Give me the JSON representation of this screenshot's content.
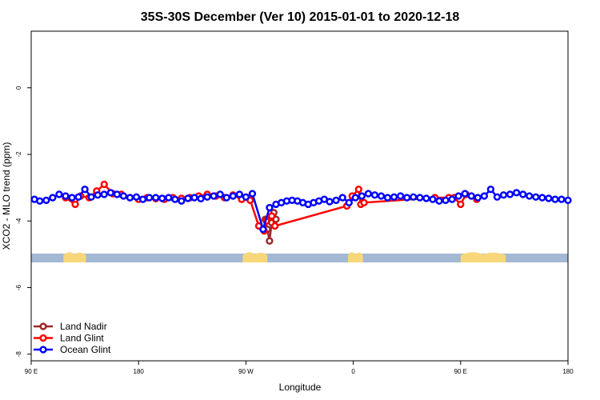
{
  "chart_data": {
    "type": "line",
    "title": "35S-30S December (Ver 10)   2015-01-01 to 2020-12-18",
    "xlabel": "Longitude",
    "ylabel": "XCO2 - MLO trend (ppm)",
    "xlim": [
      90,
      590
    ],
    "ylim": [
      -8.2,
      1.7
    ],
    "x_ticks": [
      {
        "value": 90,
        "label": "90 E"
      },
      {
        "value": 190,
        "label": "180"
      },
      {
        "value": 290,
        "label": "90 W"
      },
      {
        "value": 390,
        "label": "0"
      },
      {
        "value": 490,
        "label": "90 E"
      },
      {
        "value": 590,
        "label": "180"
      }
    ],
    "y_ticks": [
      {
        "value": 0,
        "label": "0"
      },
      {
        "value": -2,
        "label": "-2"
      },
      {
        "value": -4,
        "label": "-4"
      },
      {
        "value": -6,
        "label": "-6"
      },
      {
        "value": -8,
        "label": "-8"
      }
    ],
    "grid": false,
    "legend_position": "bottom-left",
    "land_ocean_band": {
      "y_value": -5.1,
      "ocean_color": "#a3b8d4",
      "land_color": "#f7d77a",
      "land_segments": [
        [
          120,
          141
        ],
        [
          287,
          310
        ],
        [
          385,
          399
        ],
        [
          490,
          532
        ]
      ]
    },
    "series": [
      {
        "name": "Land Nadir",
        "color": "#9b2a2a",
        "x": [
          308,
          310,
          312,
          314,
          316,
          318
        ],
        "y": [
          -3.95,
          -4.25,
          -4.6,
          -4.05,
          -3.75,
          -3.95
        ]
      },
      {
        "name": "Land Glint",
        "color": "#ff0000",
        "x": [
          122,
          131,
          136,
          144,
          151,
          158,
          166,
          174,
          182,
          190,
          198,
          206,
          214,
          222,
          230,
          238,
          246,
          254,
          262,
          270,
          278,
          286,
          294,
          302,
          307,
          309,
          314,
          317,
          384,
          389,
          395,
          397,
          400,
          466,
          479,
          484,
          490,
          495,
          500,
          505
        ],
        "y": [
          -3.3,
          -3.5,
          -3.25,
          -3.3,
          -3.1,
          -2.9,
          -3.18,
          -3.2,
          -3.3,
          -3.35,
          -3.3,
          -3.33,
          -3.35,
          -3.3,
          -3.32,
          -3.3,
          -3.25,
          -3.2,
          -3.25,
          -3.3,
          -3.22,
          -3.35,
          -3.38,
          -4.15,
          -4.3,
          -4.0,
          -3.85,
          -4.15,
          -3.55,
          -3.25,
          -3.05,
          -3.5,
          -3.45,
          -3.3,
          -3.3,
          -3.3,
          -3.5,
          -3.2,
          -3.25,
          -3.35
        ]
      },
      {
        "name": "Ocean Glint",
        "color": "#0000ff",
        "x": [
          93,
          98,
          104,
          110,
          116,
          122,
          128,
          134,
          140,
          146,
          152,
          158,
          164,
          170,
          176,
          182,
          188,
          194,
          200,
          206,
          212,
          218,
          224,
          230,
          236,
          242,
          248,
          254,
          260,
          266,
          272,
          278,
          284,
          290,
          296,
          306,
          312,
          318,
          323,
          328,
          333,
          338,
          343,
          348,
          353,
          358,
          363,
          368,
          374,
          380,
          386,
          392,
          398,
          404,
          410,
          416,
          422,
          428,
          434,
          440,
          446,
          452,
          458,
          464,
          470,
          476,
          482,
          488,
          494,
          500,
          506,
          512,
          518,
          524,
          530,
          536,
          542,
          548,
          554,
          560,
          566,
          572,
          578,
          584,
          590
        ],
        "y": [
          -3.35,
          -3.4,
          -3.38,
          -3.3,
          -3.2,
          -3.25,
          -3.3,
          -3.28,
          -3.05,
          -3.28,
          -3.22,
          -3.2,
          -3.15,
          -3.2,
          -3.25,
          -3.3,
          -3.28,
          -3.35,
          -3.3,
          -3.3,
          -3.32,
          -3.3,
          -3.35,
          -3.4,
          -3.32,
          -3.3,
          -3.33,
          -3.28,
          -3.25,
          -3.2,
          -3.3,
          -3.25,
          -3.2,
          -3.28,
          -3.18,
          -4.25,
          -3.6,
          -3.5,
          -3.45,
          -3.4,
          -3.38,
          -3.4,
          -3.45,
          -3.5,
          -3.45,
          -3.4,
          -3.35,
          -3.42,
          -3.38,
          -3.3,
          -3.45,
          -3.3,
          -3.25,
          -3.18,
          -3.22,
          -3.25,
          -3.3,
          -3.28,
          -3.25,
          -3.3,
          -3.28,
          -3.3,
          -3.32,
          -3.35,
          -3.4,
          -3.38,
          -3.35,
          -3.25,
          -3.18,
          -3.25,
          -3.3,
          -3.25,
          -3.05,
          -3.28,
          -3.22,
          -3.2,
          -3.15,
          -3.2,
          -3.25,
          -3.28,
          -3.3,
          -3.32,
          -3.35,
          -3.35,
          -3.38
        ]
      }
    ]
  }
}
